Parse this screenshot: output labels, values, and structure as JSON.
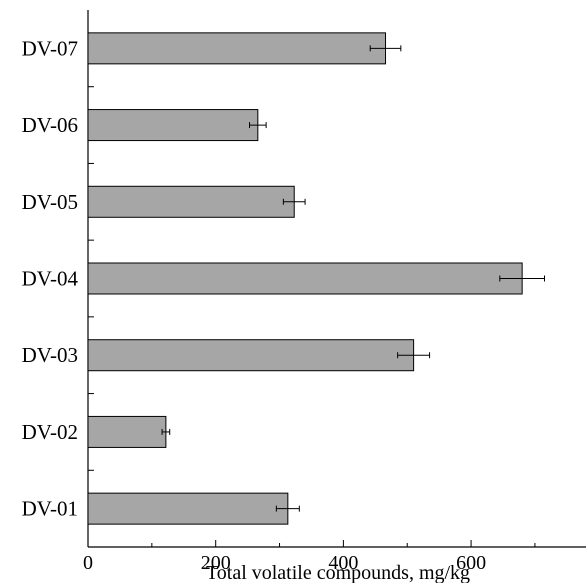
{
  "chart_data": {
    "type": "bar",
    "orientation": "horizontal",
    "categories": [
      "DV-01",
      "DV-02",
      "DV-03",
      "DV-04",
      "DV-05",
      "DV-06",
      "DV-07"
    ],
    "values": [
      313,
      122,
      510,
      680,
      323,
      266,
      466
    ],
    "errors": [
      18,
      6,
      25,
      35,
      17,
      13,
      24
    ],
    "xlabel": "Total volatile compounds, mg/kg",
    "ylabel": "",
    "title": "",
    "xlim": [
      0,
      780
    ],
    "xticks": [
      0,
      200,
      400,
      600
    ],
    "grid": false,
    "legend": "none",
    "bar_color": "#a6a6a6"
  }
}
